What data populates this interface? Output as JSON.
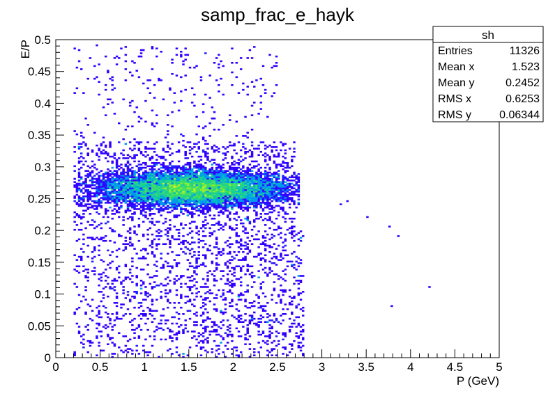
{
  "chart_data": {
    "type": "heatmap",
    "title": "samp_frac_e_hayk",
    "xlabel": "P (GeV)",
    "ylabel": "E/P",
    "xlim": [
      0,
      5
    ],
    "ylim": [
      0,
      0.5
    ],
    "x_ticks": [
      "0",
      "0.5",
      "1",
      "1.5",
      "2",
      "2.5",
      "3",
      "3.5",
      "4",
      "4.5",
      "5"
    ],
    "y_ticks": [
      "0",
      "0.05",
      "0.1",
      "0.15",
      "0.2",
      "0.25",
      "0.3",
      "0.35",
      "0.4",
      "0.45",
      "0.5"
    ],
    "palette": [
      "#3300ff",
      "#2020ff",
      "#0066ff",
      "#0099ee",
      "#00c0c0",
      "#20d090",
      "#40e060",
      "#90ee30",
      "#d8f020"
    ],
    "stats_box": {
      "name": "sh",
      "rows": [
        {
          "label": "Entries",
          "value": "11326"
        },
        {
          "label": "Mean x",
          "value": "1.523"
        },
        {
          "label": "Mean y",
          "value": "0.2452"
        },
        {
          "label": "RMS x",
          "value": "0.6253"
        },
        {
          "label": "RMS y",
          "value": "0.06344"
        }
      ]
    },
    "distribution": {
      "core": {
        "x_range": [
          0.2,
          2.75
        ],
        "y_range": [
          0.22,
          0.305
        ],
        "peak": [
          1.65,
          0.268
        ]
      },
      "tail": {
        "x_range": [
          0.2,
          2.7
        ],
        "y_range": [
          0.0,
          0.2
        ]
      },
      "outliers": [
        [
          4.2,
          0.11
        ],
        [
          3.8,
          0.08
        ],
        [
          3.75,
          0.205
        ],
        [
          3.85,
          0.19
        ],
        [
          3.5,
          0.22
        ],
        [
          3.3,
          0.245
        ],
        [
          3.2,
          0.24
        ],
        [
          0.45,
          0.49
        ],
        [
          1.3,
          0.47
        ]
      ]
    }
  }
}
